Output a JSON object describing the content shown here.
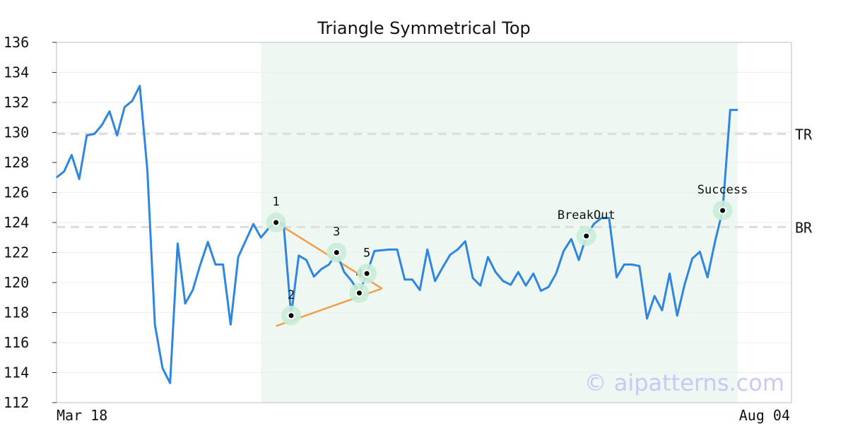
{
  "chart_data": {
    "type": "line",
    "title": "Triangle Symmetrical Top",
    "xlabel": "",
    "ylabel": "",
    "ylim": [
      112,
      136
    ],
    "y_ticks": [
      112,
      114,
      116,
      118,
      120,
      122,
      124,
      126,
      128,
      130,
      132,
      134,
      136
    ],
    "x_tick_labels": [
      "Mar 18",
      "Aug 04"
    ],
    "grid": true,
    "legend": "none",
    "series": [
      {
        "color": "#2e86de",
        "values": [
          127.0,
          127.4,
          128.5,
          126.9,
          129.8,
          129.9,
          130.5,
          131.4,
          129.8,
          131.7,
          132.1,
          133.1,
          127.5,
          117.2,
          114.3,
          113.3,
          122.6,
          118.6,
          119.5,
          121.2,
          122.7,
          121.2,
          121.2,
          117.2,
          121.7,
          122.8,
          123.9,
          123.0,
          123.6,
          124.0,
          123.9,
          117.8,
          121.8,
          121.5,
          120.4,
          120.9,
          121.2,
          122.0,
          120.7,
          120.1,
          119.3,
          120.6,
          122.1,
          122.15,
          122.2,
          122.2,
          120.2,
          120.2,
          119.5,
          122.2,
          120.1,
          121.0,
          121.85,
          122.2,
          122.75,
          120.3,
          119.8,
          121.7,
          120.7,
          120.1,
          119.85,
          120.7,
          119.8,
          120.6,
          119.45,
          119.7,
          120.6,
          122.1,
          122.9,
          121.5,
          123.1,
          123.9,
          124.3,
          124.3,
          120.35,
          121.2,
          121.2,
          121.1,
          117.6,
          119.1,
          118.15,
          120.6,
          117.8,
          119.9,
          121.6,
          122.05,
          120.35,
          122.75,
          124.8,
          131.5,
          131.5
        ]
      }
    ],
    "pattern_region": {
      "start_index": 27,
      "end_index": 90,
      "color": "#eef7f2"
    },
    "triangle_lines": [
      {
        "from": {
          "x": 29,
          "y": 124.0
        },
        "to": {
          "x": 43,
          "y": 119.6
        }
      },
      {
        "from": {
          "x": 29,
          "y": 117.1
        },
        "to": {
          "x": 43,
          "y": 119.6
        }
      }
    ],
    "points": [
      {
        "label": "1",
        "x": 29,
        "y": 124.0
      },
      {
        "label": "2",
        "x": 31,
        "y": 117.8
      },
      {
        "label": "3",
        "x": 37,
        "y": 122.0
      },
      {
        "label": "4",
        "x": 40,
        "y": 119.3
      },
      {
        "label": "5",
        "x": 41,
        "y": 120.6
      }
    ],
    "annotations": [
      {
        "label": "BreakOut",
        "x": 70,
        "y": 123.1
      },
      {
        "label": "Success",
        "x": 88,
        "y": 124.8
      }
    ],
    "levels": [
      {
        "label": "TR",
        "value": 129.9
      },
      {
        "label": "BR",
        "value": 123.7
      }
    ],
    "colors": {
      "line": "#2e86de",
      "triangle": "#f39c45",
      "highlight": "#c8ecd8",
      "level_line": "#dddddd"
    }
  },
  "watermark": "© aipatterns.com"
}
